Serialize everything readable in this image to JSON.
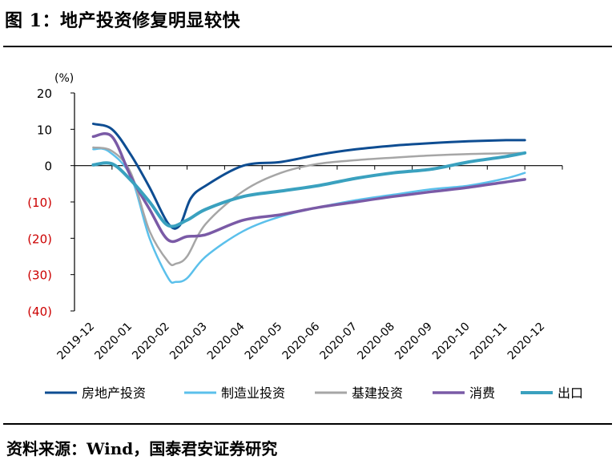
{
  "figure": {
    "title": "图 1：地产投资修复明显较快",
    "source": "资料来源：Wind，国泰君安证券研究"
  },
  "chart_data": {
    "type": "line",
    "title": "",
    "xlabel": "",
    "ylabel": "(%)",
    "ylim": [
      -40,
      20
    ],
    "yticks": [
      20,
      10,
      0,
      -10,
      -20,
      -30,
      -40
    ],
    "ytick_labels": [
      "20",
      "10",
      "0",
      "(10)",
      "(20)",
      "(30)",
      "(40)"
    ],
    "negative_tick_color": "#cc0000",
    "categories": [
      "2019-12",
      "2020-01",
      "2020-02",
      "2020-03",
      "2020-04",
      "2020-05",
      "2020-06",
      "2020-07",
      "2020-08",
      "2020-09",
      "2020-10",
      "2020-11",
      "2020-12"
    ],
    "legend_position": "bottom",
    "series": [
      {
        "name": "房地产投资",
        "color": "#0e4d92",
        "width": 3,
        "points": [
          [
            0,
            11.5
          ],
          [
            0.5,
            10
          ],
          [
            1,
            3
          ],
          [
            1.5,
            -6
          ],
          [
            2,
            -16
          ],
          [
            2.3,
            -16.5
          ],
          [
            2.6,
            -9
          ],
          [
            3,
            -5.5
          ],
          [
            4,
            0
          ],
          [
            5,
            1
          ],
          [
            6,
            3
          ],
          [
            7,
            4.5
          ],
          [
            8,
            5.5
          ],
          [
            9,
            6.2
          ],
          [
            10,
            6.7
          ],
          [
            11,
            7
          ],
          [
            11.5,
            7
          ]
        ]
      },
      {
        "name": "制造业投资",
        "color": "#5bc0eb",
        "width": 2.5,
        "points": [
          [
            0,
            4.5
          ],
          [
            0.4,
            4
          ],
          [
            1,
            -3
          ],
          [
            1.5,
            -20
          ],
          [
            2,
            -31
          ],
          [
            2.2,
            -32
          ],
          [
            2.5,
            -31
          ],
          [
            3,
            -25
          ],
          [
            4,
            -18
          ],
          [
            5,
            -14
          ],
          [
            6,
            -11.5
          ],
          [
            7,
            -9.5
          ],
          [
            8,
            -8
          ],
          [
            9,
            -6.5
          ],
          [
            10,
            -5.5
          ],
          [
            11,
            -3.5
          ],
          [
            11.5,
            -2
          ]
        ]
      },
      {
        "name": "基建投资",
        "color": "#a6a6a6",
        "width": 2.5,
        "points": [
          [
            0,
            5
          ],
          [
            0.5,
            4
          ],
          [
            1,
            -2
          ],
          [
            1.5,
            -18
          ],
          [
            2,
            -26.5
          ],
          [
            2.2,
            -27
          ],
          [
            2.5,
            -25
          ],
          [
            3,
            -16
          ],
          [
            4,
            -7
          ],
          [
            5,
            -2
          ],
          [
            6,
            0.5
          ],
          [
            7,
            1.5
          ],
          [
            8,
            2.2
          ],
          [
            9,
            2.8
          ],
          [
            10,
            3.2
          ],
          [
            11,
            3.4
          ],
          [
            11.5,
            3.5
          ]
        ]
      },
      {
        "name": "消费",
        "color": "#7a5aa6",
        "width": 3.5,
        "points": [
          [
            0,
            8
          ],
          [
            0.5,
            8
          ],
          [
            1,
            -3
          ],
          [
            1.5,
            -12
          ],
          [
            2,
            -20.5
          ],
          [
            2.5,
            -19.5
          ],
          [
            3,
            -19
          ],
          [
            4,
            -15
          ],
          [
            5,
            -13.5
          ],
          [
            6,
            -11.5
          ],
          [
            7,
            -10
          ],
          [
            8,
            -8.5
          ],
          [
            9,
            -7.2
          ],
          [
            10,
            -6
          ],
          [
            11,
            -4.5
          ],
          [
            11.5,
            -3.8
          ]
        ]
      },
      {
        "name": "出口",
        "color": "#3aa1bf",
        "width": 4,
        "points": [
          [
            0,
            0.2
          ],
          [
            0.5,
            0.5
          ],
          [
            1,
            -4
          ],
          [
            1.5,
            -10
          ],
          [
            2,
            -16.5
          ],
          [
            2.5,
            -15
          ],
          [
            3,
            -12
          ],
          [
            4,
            -8.5
          ],
          [
            5,
            -7
          ],
          [
            6,
            -5.5
          ],
          [
            7,
            -3.5
          ],
          [
            8,
            -2
          ],
          [
            9,
            -1
          ],
          [
            10,
            1
          ],
          [
            11,
            2.5
          ],
          [
            11.5,
            3.5
          ]
        ]
      }
    ]
  }
}
